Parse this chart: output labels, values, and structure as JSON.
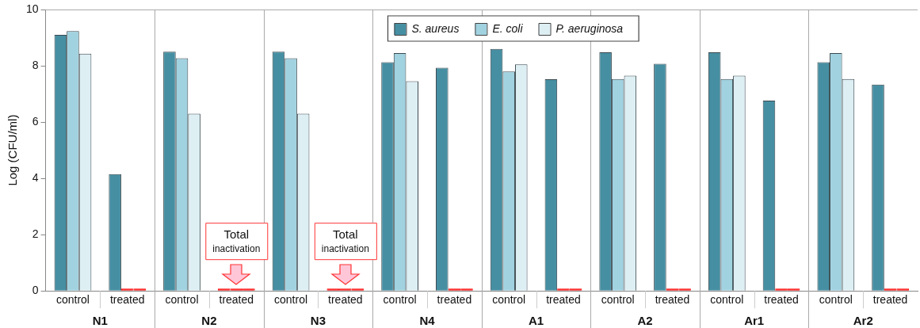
{
  "chart_data": {
    "type": "bar",
    "ylabel": "Log (CFU/ml)",
    "categories": [
      "control",
      "treated",
      "control",
      "treated",
      "control",
      "treated",
      "control",
      "treated",
      "control",
      "treated",
      "control",
      "treated",
      "control",
      "treated",
      "control",
      "treated"
    ],
    "series": [
      {
        "name": "S. aureus",
        "color": "#468fa3",
        "values": [
          9.1,
          4.15,
          8.5,
          0,
          8.5,
          0,
          8.13,
          7.93,
          8.6,
          7.52,
          8.48,
          8.07,
          8.48,
          6.76,
          8.13,
          7.33
        ],
        "colors": [
          "#468fa3",
          "#468fa3",
          "#468fa3",
          "#ff0000",
          "#468fa3",
          "#ff0000",
          "#468fa3",
          "#468fa3",
          "#468fa3",
          "#468fa3",
          "#468fa3",
          "#468fa3",
          "#468fa3",
          "#468fa3",
          "#468fa3",
          "#468fa3"
        ]
      },
      {
        "name": "E. coli",
        "color": "#a1d2e0",
        "values": [
          9.23,
          0,
          8.27,
          0,
          8.27,
          0,
          8.45,
          0,
          7.8,
          0,
          7.53,
          0,
          7.53,
          0,
          8.45,
          0
        ],
        "colors": [
          "#a1d2e0",
          "#ff0000",
          "#a1d2e0",
          "#ff0000",
          "#a1d2e0",
          "#ff0000",
          "#a1d2e0",
          "#ff0000",
          "#a1d2e0",
          "#ff0000",
          "#a1d2e0",
          "#ff0000",
          "#a1d2e0",
          "#ff0000",
          "#a1d2e0",
          "#ff0000"
        ]
      },
      {
        "name": "P. aeruginosa",
        "color": "#deeff4",
        "values": [
          8.43,
          0,
          6.3,
          0,
          6.3,
          0,
          7.45,
          0,
          8.05,
          0,
          7.65,
          0,
          7.65,
          0,
          7.53,
          0
        ],
        "colors": [
          "#deeff4",
          "#ff0000",
          "#deeff4",
          "#ff0000",
          "#deeff4",
          "#ff0000",
          "#deeff4",
          "#ff0000",
          "#deeff4",
          "#ff0000",
          "#deeff4",
          "#ff0000",
          "#deeff4",
          "#ff0000",
          "#deeff4",
          "#ff0000"
        ]
      }
    ],
    "ylim": [
      0,
      10
    ],
    "yticks": [
      0,
      2,
      4,
      6,
      8,
      10
    ],
    "grid": "x",
    "legend": "top",
    "annotations": [
      "N1",
      "N2",
      "N3",
      "N4",
      "A1",
      "A2",
      "Ar1",
      "Ar2",
      "Total inactivation",
      "Total inactivation"
    ]
  }
}
